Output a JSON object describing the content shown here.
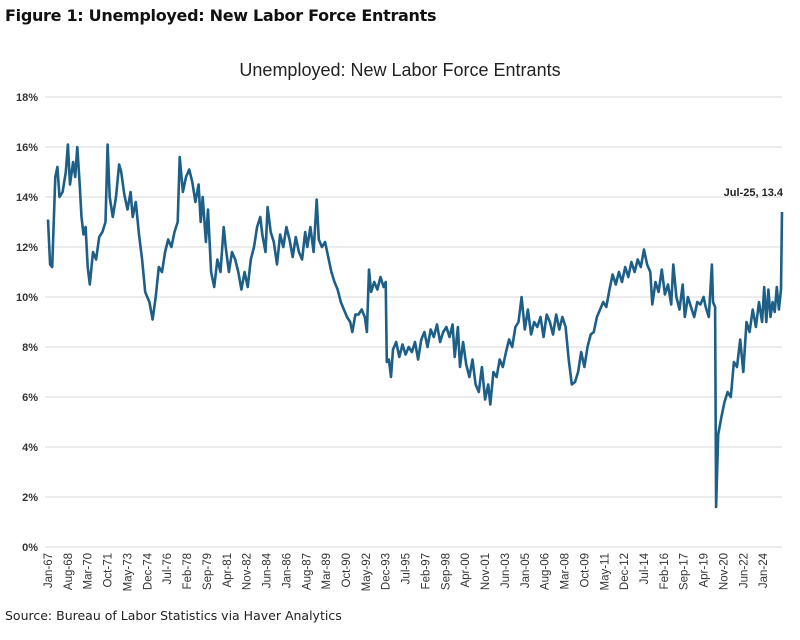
{
  "figure_title": "Figure 1: Unemployed: New Labor Force Entrants",
  "source": "Source: Bureau of Labor Statistics via Haver Analytics",
  "chart_data": {
    "type": "line",
    "title": "Unemployed: New Labor Force Entrants",
    "xlabel": "",
    "ylabel": "",
    "ylim": [
      0,
      18
    ],
    "yticks": [
      "0%",
      "2%",
      "4%",
      "6%",
      "8%",
      "10%",
      "12%",
      "14%",
      "16%",
      "18%"
    ],
    "ytick_values": [
      0,
      2,
      4,
      6,
      8,
      10,
      12,
      14,
      16,
      18
    ],
    "xlim": [
      "1967-01",
      "2025-07"
    ],
    "xtick_labels": [
      "Jan-67",
      "Aug-68",
      "Mar-70",
      "Oct-71",
      "May-73",
      "Dec-74",
      "Jul-76",
      "Feb-78",
      "Sep-79",
      "Apr-81",
      "Nov-82",
      "Jun-84",
      "Jan-86",
      "Aug-87",
      "Mar-89",
      "Oct-90",
      "May-92",
      "Dec-93",
      "Jul-95",
      "Feb-97",
      "Sep-98",
      "Apr-00",
      "Nov-01",
      "Jun-03",
      "Jan-05",
      "Aug-06",
      "Mar-08",
      "Oct-09",
      "May-11",
      "Dec-12",
      "Jul-14",
      "Feb-16",
      "Sep-17",
      "Apr-19",
      "Nov-20",
      "Jun-22",
      "Jan-24"
    ],
    "grid": true,
    "legend": "none",
    "line_color": "#1d5f86",
    "annotation": {
      "text": "Jul-25, 13.4",
      "x": "2025-07",
      "y": 13.4
    },
    "series": [
      {
        "x": [
          "1967-01",
          "1967-03",
          "1967-05",
          "1967-08",
          "1967-10",
          "1967-12",
          "1968-03",
          "1968-06",
          "1968-08",
          "1968-10",
          "1969-01",
          "1969-03",
          "1969-05",
          "1969-07",
          "1969-09",
          "1969-11",
          "1970-01",
          "1970-03",
          "1970-05",
          "1970-08",
          "1970-11",
          "1971-02",
          "1971-05",
          "1971-08",
          "1971-10",
          "1971-12",
          "1972-03",
          "1972-06",
          "1972-09",
          "1972-11",
          "1973-02",
          "1973-05",
          "1973-08",
          "1973-10",
          "1974-01",
          "1974-04",
          "1974-07",
          "1974-10",
          "1975-02",
          "1975-05",
          "1975-08",
          "1975-11",
          "1976-02",
          "1976-05",
          "1976-08",
          "1976-11",
          "1977-02",
          "1977-05",
          "1977-07",
          "1977-10",
          "1978-01",
          "1978-04",
          "1978-07",
          "1978-10",
          "1979-01",
          "1979-03",
          "1979-05",
          "1979-08",
          "1979-10",
          "1980-01",
          "1980-04",
          "1980-07",
          "1980-10",
          "1981-01",
          "1981-03",
          "1981-06",
          "1981-09",
          "1981-12",
          "1982-03",
          "1982-06",
          "1982-09",
          "1982-12",
          "1983-03",
          "1983-06",
          "1983-09",
          "1983-12",
          "1984-02",
          "1984-05",
          "1984-07",
          "1984-10",
          "1985-01",
          "1985-04",
          "1985-07",
          "1985-10",
          "1986-01",
          "1986-04",
          "1986-07",
          "1986-10",
          "1987-01",
          "1987-04",
          "1987-07",
          "1987-09",
          "1987-12",
          "1988-03",
          "1988-06",
          "1988-08",
          "1988-11",
          "1989-02",
          "1989-05",
          "1989-08",
          "1989-11",
          "1990-02",
          "1990-05",
          "1990-08",
          "1990-11",
          "1991-02",
          "1991-04",
          "1991-07",
          "1991-10",
          "1992-01",
          "1992-04",
          "1992-06",
          "1992-08",
          "1992-10",
          "1993-01",
          "1993-04",
          "1993-07",
          "1993-10",
          "1993-12",
          "1994-01",
          "1994-03",
          "1994-05",
          "1994-07",
          "1994-10",
          "1995-01",
          "1995-04",
          "1995-07",
          "1995-10",
          "1996-01",
          "1996-04",
          "1996-07",
          "1996-10",
          "1997-01",
          "1997-04",
          "1997-07",
          "1997-10",
          "1998-01",
          "1998-04",
          "1998-07",
          "1998-10",
          "1999-01",
          "1999-04",
          "1999-06",
          "1999-09",
          "1999-11",
          "2000-02",
          "2000-05",
          "2000-08",
          "2000-11",
          "2001-02",
          "2001-05",
          "2001-08",
          "2001-11",
          "2002-02",
          "2002-04",
          "2002-07",
          "2002-10",
          "2003-01",
          "2003-04",
          "2003-07",
          "2003-10",
          "2004-01",
          "2004-04",
          "2004-07",
          "2004-10",
          "2005-01",
          "2005-04",
          "2005-07",
          "2005-10",
          "2006-01",
          "2006-04",
          "2006-07",
          "2006-10",
          "2007-01",
          "2007-04",
          "2007-07",
          "2007-10",
          "2008-01",
          "2008-04",
          "2008-07",
          "2008-10",
          "2009-01",
          "2009-04",
          "2009-07",
          "2009-10",
          "2010-01",
          "2010-04",
          "2010-07",
          "2010-10",
          "2011-01",
          "2011-04",
          "2011-07",
          "2011-10",
          "2012-01",
          "2012-04",
          "2012-07",
          "2012-10",
          "2013-01",
          "2013-04",
          "2013-07",
          "2013-10",
          "2014-01",
          "2014-04",
          "2014-07",
          "2014-10",
          "2015-01",
          "2015-03",
          "2015-06",
          "2015-09",
          "2015-12",
          "2016-03",
          "2016-06",
          "2016-09",
          "2016-11",
          "2017-02",
          "2017-05",
          "2017-08",
          "2017-10",
          "2018-01",
          "2018-04",
          "2018-07",
          "2018-10",
          "2019-01",
          "2019-04",
          "2019-06",
          "2019-09",
          "2019-12",
          "2020-01",
          "2020-03",
          "2020-04",
          "2020-06",
          "2020-09",
          "2020-12",
          "2021-03",
          "2021-06",
          "2021-09",
          "2021-12",
          "2022-03",
          "2022-06",
          "2022-09",
          "2022-12",
          "2023-03",
          "2023-06",
          "2023-09",
          "2023-12",
          "2024-02",
          "2024-04",
          "2024-06",
          "2024-08",
          "2024-10",
          "2024-12",
          "2025-02",
          "2025-04",
          "2025-06",
          "2025-07"
        ],
        "values": [
          13.1,
          11.3,
          11.2,
          14.8,
          15.2,
          14.0,
          14.2,
          15.0,
          16.1,
          14.5,
          15.4,
          14.8,
          16.0,
          14.7,
          13.2,
          12.5,
          12.8,
          11.2,
          10.5,
          11.8,
          11.5,
          12.4,
          12.6,
          13.0,
          16.1,
          14.0,
          13.2,
          14.0,
          15.3,
          15.0,
          14.1,
          13.5,
          14.2,
          13.2,
          13.8,
          12.5,
          11.5,
          10.2,
          9.8,
          9.1,
          10.0,
          11.2,
          11.0,
          11.8,
          12.3,
          12.0,
          12.6,
          13.0,
          15.6,
          14.2,
          14.8,
          15.1,
          14.6,
          13.8,
          14.5,
          13.0,
          14.0,
          12.2,
          13.5,
          11.0,
          10.4,
          11.5,
          11.0,
          12.8,
          12.0,
          11.0,
          11.8,
          11.5,
          11.0,
          10.3,
          11.0,
          10.4,
          11.5,
          12.0,
          12.8,
          13.2,
          12.5,
          11.8,
          13.6,
          12.6,
          12.2,
          11.3,
          12.5,
          12.0,
          12.8,
          12.3,
          11.6,
          12.4,
          11.8,
          11.5,
          12.6,
          12.0,
          12.8,
          11.8,
          13.9,
          12.3,
          12.0,
          12.2,
          11.6,
          11.0,
          10.6,
          10.3,
          9.8,
          9.5,
          9.2,
          9.0,
          8.6,
          9.3,
          9.3,
          9.5,
          9.2,
          8.6,
          11.1,
          10.2,
          10.6,
          10.3,
          10.8,
          10.4,
          10.6,
          7.4,
          7.5,
          6.8,
          7.9,
          8.2,
          7.6,
          8.1,
          7.7,
          8.0,
          7.8,
          8.2,
          7.5,
          8.3,
          8.6,
          8.0,
          8.7,
          8.4,
          8.9,
          8.2,
          8.6,
          8.8,
          8.4,
          8.9,
          7.6,
          8.8,
          7.2,
          8.2,
          7.3,
          6.8,
          7.5,
          6.5,
          6.2,
          7.2,
          5.9,
          6.5,
          5.7,
          7.0,
          6.8,
          7.5,
          7.2,
          7.8,
          8.3,
          8.0,
          8.8,
          9.0,
          10.0,
          8.7,
          9.5,
          8.5,
          9.0,
          8.8,
          9.2,
          8.4,
          9.3,
          9.0,
          8.5,
          9.3,
          8.7,
          9.2,
          8.8,
          7.5,
          6.5,
          6.6,
          7.0,
          7.8,
          7.2,
          8.0,
          8.5,
          8.6,
          9.2,
          9.5,
          9.8,
          9.6,
          10.3,
          10.9,
          10.5,
          11.0,
          10.6,
          11.2,
          10.8,
          11.4,
          11.0,
          11.5,
          11.2,
          11.9,
          11.3,
          11.0,
          9.7,
          10.6,
          10.2,
          11.1,
          10.1,
          10.5,
          9.7,
          11.3,
          10.0,
          9.5,
          10.5,
          9.2,
          10.0,
          9.6,
          9.2,
          9.8,
          9.7,
          10.0,
          9.6,
          9.2,
          11.3,
          9.8,
          9.6,
          1.6,
          4.5,
          5.2,
          5.8,
          6.2,
          6.0,
          7.4,
          7.2,
          8.3,
          7.0,
          9.0,
          8.6,
          9.5,
          8.8,
          9.8,
          9.0,
          10.4,
          9.0,
          10.3,
          9.2,
          9.8,
          9.4,
          10.4,
          9.5,
          10.3,
          13.4
        ]
      }
    ]
  }
}
